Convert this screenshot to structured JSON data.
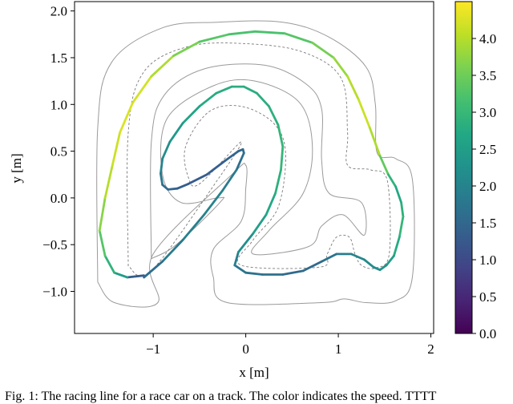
{
  "chart_data": {
    "type": "line",
    "title": "",
    "xlabel": "x [m]",
    "ylabel": "y [m]",
    "xlim": [
      -1.85,
      2.03
    ],
    "ylim": [
      -1.45,
      2.1
    ],
    "x_ticks": [
      -1,
      0,
      1,
      2
    ],
    "x_tick_labels": [
      "−1",
      "0",
      "1",
      "2"
    ],
    "y_ticks": [
      -1.0,
      -0.5,
      0.0,
      0.5,
      1.0,
      1.5,
      2.0
    ],
    "y_tick_labels": [
      "−1.0",
      "−0.5",
      "0.0",
      "0.5",
      "1.0",
      "1.5",
      "2.0"
    ],
    "grid": false,
    "colorbar": {
      "colormap": "viridis",
      "range": [
        0.0,
        4.5
      ],
      "ticks": [
        0.0,
        0.5,
        1.0,
        1.5,
        2.0,
        2.5,
        3.0,
        3.5,
        4.0
      ],
      "tick_labels": [
        "0.0",
        "0.5",
        "1.0",
        "1.5",
        "2.0",
        "2.5",
        "3.0",
        "3.5",
        "4.0"
      ]
    },
    "track": {
      "centerline": [
        [
          -1.27,
          -0.73
        ],
        [
          -1.27,
          0.7
        ],
        [
          -1.1,
          1.35
        ],
        [
          -0.62,
          1.62
        ],
        [
          0.0,
          1.65
        ],
        [
          0.62,
          1.56
        ],
        [
          1.03,
          1.28
        ],
        [
          1.1,
          0.7
        ],
        [
          1.1,
          0.35
        ],
        [
          1.35,
          0.3
        ],
        [
          1.53,
          0.18
        ],
        [
          1.55,
          -0.6
        ],
        [
          1.4,
          -0.75
        ],
        [
          1.25,
          -0.72
        ],
        [
          1.18,
          -0.6
        ],
        [
          1.12,
          -0.42
        ],
        [
          0.98,
          -0.42
        ],
        [
          0.88,
          -0.6
        ],
        [
          0.8,
          -0.74
        ],
        [
          -0.05,
          -0.72
        ],
        [
          0.08,
          -0.45
        ],
        [
          0.35,
          -0.1
        ],
        [
          0.43,
          0.48
        ],
        [
          0.3,
          0.8
        ],
        [
          -0.05,
          0.98
        ],
        [
          -0.4,
          0.92
        ],
        [
          -0.65,
          0.55
        ],
        [
          -0.62,
          0.22
        ],
        [
          -0.5,
          0.15
        ],
        [
          -0.05,
          0.6
        ],
        [
          -0.3,
          0.2
        ],
        [
          -1.02,
          -0.78
        ],
        [
          -1.27,
          -0.73
        ]
      ],
      "outer": [
        [
          -1.6,
          -0.9
        ],
        [
          -1.6,
          0.75
        ],
        [
          -1.45,
          1.45
        ],
        [
          -0.9,
          1.82
        ],
        [
          -0.3,
          1.88
        ],
        [
          0.4,
          1.88
        ],
        [
          0.9,
          1.72
        ],
        [
          1.3,
          1.4
        ],
        [
          1.4,
          1.0
        ],
        [
          1.42,
          0.48
        ],
        [
          1.62,
          0.42
        ],
        [
          1.8,
          0.2
        ],
        [
          1.8,
          -0.85
        ],
        [
          1.62,
          -1.1
        ],
        [
          1.3,
          -1.12
        ],
        [
          1.06,
          -1.08
        ],
        [
          0.82,
          -1.12
        ],
        [
          -0.2,
          -1.12
        ],
        [
          -0.35,
          -0.85
        ],
        [
          -0.35,
          -0.55
        ],
        [
          -0.05,
          -0.25
        ],
        [
          0.0,
          0.1
        ],
        [
          0.0,
          0.35
        ],
        [
          -0.15,
          0.25
        ],
        [
          -1.0,
          -0.6
        ],
        [
          -0.95,
          -1.12
        ],
        [
          -1.42,
          -1.12
        ],
        [
          -1.6,
          -0.9
        ]
      ],
      "inner": [
        [
          -1.02,
          -0.65
        ],
        [
          -1.02,
          0.6
        ],
        [
          -0.88,
          1.1
        ],
        [
          -0.45,
          1.38
        ],
        [
          0.2,
          1.42
        ],
        [
          0.65,
          1.22
        ],
        [
          0.82,
          0.95
        ],
        [
          0.82,
          0.4
        ],
        [
          0.9,
          0.05
        ],
        [
          1.25,
          -0.05
        ],
        [
          1.28,
          -0.4
        ],
        [
          1.05,
          -0.18
        ],
        [
          0.82,
          -0.3
        ],
        [
          0.68,
          -0.52
        ],
        [
          0.08,
          -0.6
        ],
        [
          0.25,
          -0.35
        ],
        [
          0.62,
          0.05
        ],
        [
          0.72,
          0.55
        ],
        [
          0.58,
          1.02
        ],
        [
          0.1,
          1.25
        ],
        [
          -0.35,
          1.2
        ],
        [
          -0.85,
          0.85
        ],
        [
          -0.9,
          0.25
        ],
        [
          -0.7,
          -0.05
        ],
        [
          -0.3,
          0.0
        ],
        [
          -0.28,
          -0.05
        ],
        [
          -0.75,
          -0.5
        ],
        [
          -1.02,
          -0.65
        ]
      ]
    },
    "series": [
      {
        "x": [
          -1.1,
          -1.28,
          -1.42,
          -1.52,
          -1.58,
          -1.52,
          -1.44,
          -1.36,
          -1.22,
          -1.02,
          -0.78,
          -0.5,
          -0.18,
          0.1,
          0.42,
          0.72,
          0.95,
          1.1,
          1.22,
          1.34,
          1.45,
          1.54,
          1.62,
          1.68,
          1.7,
          1.66,
          1.6,
          1.52,
          1.45,
          1.38,
          1.28,
          1.14,
          0.98,
          0.82,
          0.62,
          0.4,
          0.18,
          0.0,
          -0.12,
          -0.08,
          0.08,
          0.22,
          0.32,
          0.38,
          0.4,
          0.35,
          0.25,
          0.12,
          -0.02,
          -0.15,
          -0.32,
          -0.5,
          -0.68,
          -0.82,
          -0.9,
          -0.92,
          -0.9,
          -0.84,
          -0.74,
          -0.62,
          -0.42,
          -0.22,
          -0.08,
          -0.03,
          -0.02,
          -0.1,
          -0.25,
          -0.45,
          -0.68,
          -0.9,
          -1.1
        ],
        "y": [
          -0.83,
          -0.85,
          -0.8,
          -0.62,
          -0.35,
          0.0,
          0.35,
          0.7,
          1.02,
          1.3,
          1.52,
          1.67,
          1.75,
          1.78,
          1.76,
          1.66,
          1.5,
          1.3,
          1.05,
          0.75,
          0.45,
          0.25,
          0.12,
          -0.05,
          -0.2,
          -0.42,
          -0.62,
          -0.72,
          -0.77,
          -0.74,
          -0.66,
          -0.6,
          -0.6,
          -0.68,
          -0.78,
          -0.82,
          -0.82,
          -0.8,
          -0.72,
          -0.58,
          -0.38,
          -0.18,
          0.05,
          0.3,
          0.55,
          0.78,
          0.98,
          1.12,
          1.19,
          1.19,
          1.12,
          0.98,
          0.8,
          0.6,
          0.42,
          0.26,
          0.14,
          0.09,
          0.1,
          0.15,
          0.25,
          0.4,
          0.5,
          0.52,
          0.48,
          0.3,
          0.08,
          -0.18,
          -0.45,
          -0.68,
          -0.85
        ],
        "c": [
          0.3,
          2.3,
          2.7,
          3.1,
          3.5,
          3.9,
          4.1,
          4.2,
          4.3,
          4.1,
          3.8,
          3.4,
          3.2,
          3.2,
          3.2,
          3.4,
          3.7,
          3.9,
          4.1,
          4.2,
          3.7,
          3.1,
          2.7,
          2.7,
          3.0,
          2.9,
          2.6,
          2.4,
          2.2,
          2.2,
          2.1,
          2.0,
          1.8,
          1.6,
          1.5,
          1.6,
          1.7,
          1.7,
          1.8,
          2.0,
          2.4,
          2.6,
          2.8,
          2.9,
          3.0,
          2.9,
          2.8,
          2.8,
          2.8,
          2.8,
          2.8,
          2.7,
          2.5,
          2.3,
          2.1,
          1.9,
          1.7,
          1.5,
          1.4,
          1.3,
          1.3,
          1.4,
          1.5,
          1.5,
          1.6,
          1.7,
          2.0,
          2.0,
          1.9,
          1.8,
          1.4
        ]
      }
    ]
  },
  "figure": {
    "caption": "Fig. 1:  The racing line for a race car on a track. The color indicates the speed. TTTT"
  }
}
